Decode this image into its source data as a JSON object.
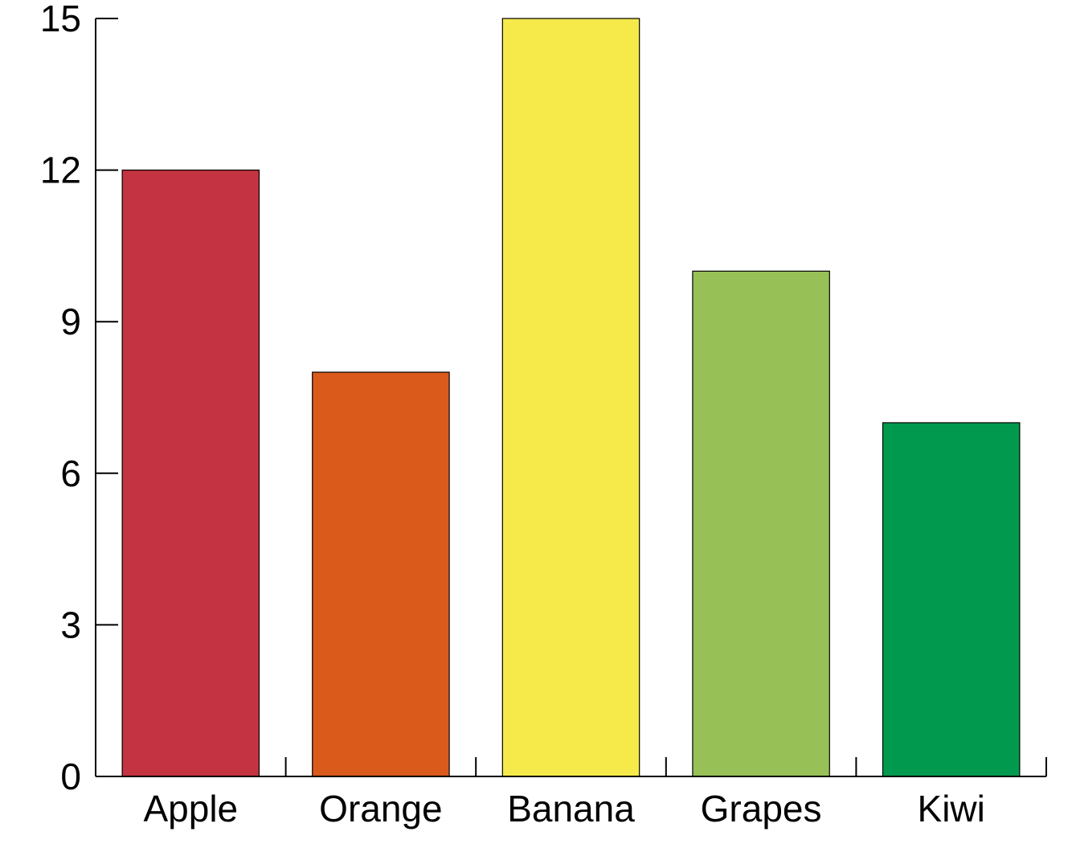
{
  "chart_data": {
    "type": "bar",
    "categories": [
      "Apple",
      "Orange",
      "Banana",
      "Grapes",
      "Kiwi"
    ],
    "values": [
      12,
      8,
      15,
      10,
      7
    ],
    "colors": [
      "#c43341",
      "#da5a1c",
      "#f5ea4a",
      "#97c157",
      "#00994d"
    ],
    "title": "",
    "xlabel": "",
    "ylabel": "",
    "ylim": [
      0,
      15
    ],
    "yticks": [
      0,
      3,
      6,
      9,
      12,
      15
    ],
    "grid": false,
    "legend": "none"
  }
}
